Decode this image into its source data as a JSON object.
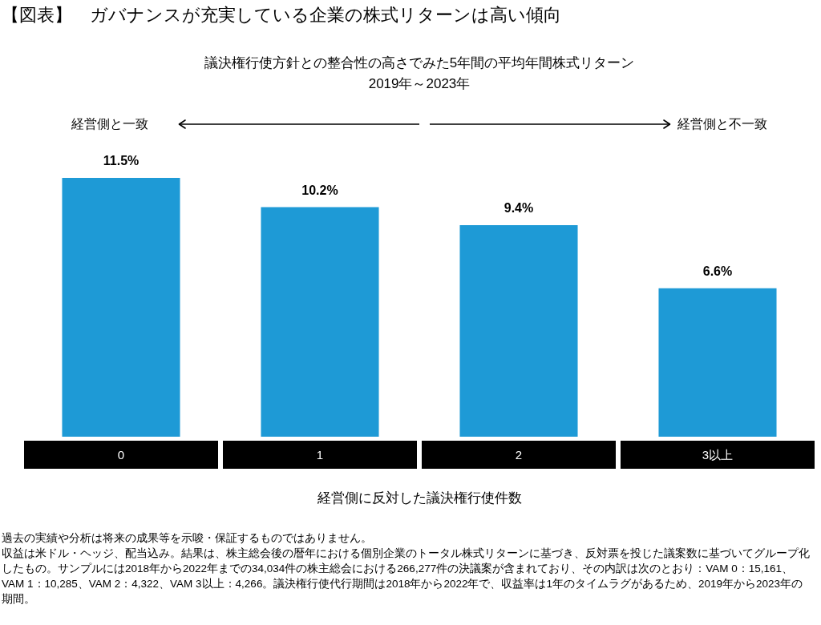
{
  "chart_data": {
    "type": "bar",
    "title": "【図表】　ガバナンスが充実している企業の株式リターンは高い傾向",
    "subtitle": "議決権行使方針との整合性の高さでみた5年間の平均年間株式リターン\n2019年～2023年",
    "xlabel": "経営側に反対した議決権行使件数",
    "categories": [
      "0",
      "1",
      "2",
      "3以上"
    ],
    "values": [
      11.5,
      10.2,
      9.4,
      6.6
    ],
    "color": "#1e9ad6",
    "value_labels": [
      "11.5%",
      "10.2%",
      "9.4%",
      "6.6%"
    ],
    "legend": false,
    "grid": false,
    "annotations": [
      "経営側と一致",
      "経営側と不一致",
      "過去の実績や分析は将来の成果等を示唆・保証するものではありません。",
      "収益は米ドル・ヘッジ、配当込み。結果は、株主総会後の暦年における個別企業のトータル株式リターンに基づき、反対票を投じた議案数に基づいてグループ化したもの。サンプルには2018年から2022年までの34,034件の株主総会における266,277件の決議案が含まれており、その内訳は次のとおり：VAM 0：15,161、VAM 1：10,285、VAM 2：4,322、VAM 3以上：4,266。議決権行使代行期間は2018年から2022年で、収益率は1年のタイムラグがあるため、2019年から2023年の期間。"
    ]
  }
}
